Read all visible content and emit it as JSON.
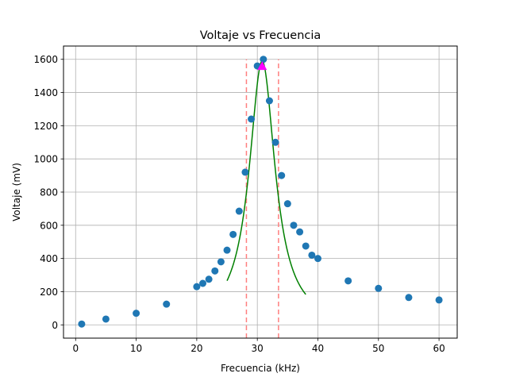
{
  "chart_data": {
    "type": "scatter",
    "title": "Voltaje vs Frecuencia",
    "xlabel": "Frecuencia (kHz)",
    "ylabel": "Voltaje (mV)",
    "xlim": [
      -2,
      63
    ],
    "ylim": [
      -80,
      1680
    ],
    "x_ticks": [
      0,
      10,
      20,
      30,
      40,
      50,
      60
    ],
    "y_ticks": [
      0,
      200,
      400,
      600,
      800,
      1000,
      1200,
      1400,
      1600
    ],
    "grid": true,
    "series": [
      {
        "kind": "scatter",
        "color": "#1f77b4",
        "x": [
          1,
          5,
          10,
          15,
          20,
          21,
          22,
          23,
          24,
          25,
          26,
          27,
          28,
          29,
          30,
          31,
          32,
          33,
          34,
          35,
          36,
          37,
          38,
          39,
          40,
          45,
          50,
          55,
          60
        ],
        "y": [
          5,
          35,
          70,
          125,
          230,
          250,
          275,
          325,
          380,
          450,
          545,
          685,
          920,
          1240,
          1560,
          1600,
          1350,
          1100,
          900,
          730,
          600,
          560,
          475,
          420,
          400,
          265,
          220,
          165,
          150
        ]
      },
      {
        "kind": "line",
        "color": "#008000",
        "model": "lorentzian",
        "peak_x": 30.8,
        "peak_y": 1590,
        "half_width": 2.6,
        "x_range": [
          25,
          38
        ]
      },
      {
        "kind": "marker",
        "shape": "triangle",
        "color": "#ff00ff",
        "x": [
          30.8
        ],
        "y": [
          1560
        ]
      },
      {
        "kind": "vline",
        "style": "dashed",
        "color": "#ff7f7f",
        "x": [
          28.2,
          33.5
        ],
        "y_range": [
          -80,
          1600
        ]
      }
    ]
  }
}
